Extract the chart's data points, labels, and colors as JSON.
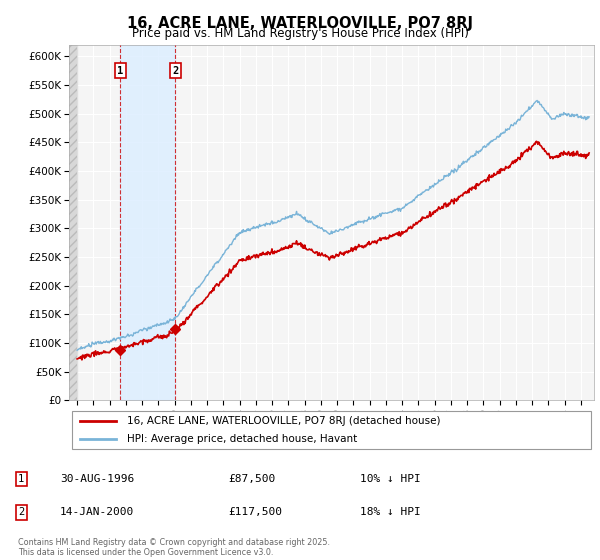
{
  "title": "16, ACRE LANE, WATERLOOVILLE, PO7 8RJ",
  "subtitle": "Price paid vs. HM Land Registry's House Price Index (HPI)",
  "ylim": [
    0,
    620000
  ],
  "yticks": [
    0,
    50000,
    100000,
    150000,
    200000,
    250000,
    300000,
    350000,
    400000,
    450000,
    500000,
    550000,
    600000
  ],
  "ytick_labels": [
    "£0",
    "£50K",
    "£100K",
    "£150K",
    "£200K",
    "£250K",
    "£300K",
    "£350K",
    "£400K",
    "£450K",
    "£500K",
    "£550K",
    "£600K"
  ],
  "hpi_color": "#7ab4d8",
  "price_color": "#cc0000",
  "sale1_date": 1996.66,
  "sale1_price": 87500,
  "sale2_date": 2000.04,
  "sale2_price": 117500,
  "legend1": "16, ACRE LANE, WATERLOOVILLE, PO7 8RJ (detached house)",
  "legend2": "HPI: Average price, detached house, Havant",
  "note1_date": "30-AUG-1996",
  "note1_price": "£87,500",
  "note1_hpi": "10% ↓ HPI",
  "note2_date": "14-JAN-2000",
  "note2_price": "£117,500",
  "note2_hpi": "18% ↓ HPI",
  "copyright": "Contains HM Land Registry data © Crown copyright and database right 2025.\nThis data is licensed under the Open Government Licence v3.0.",
  "plot_bg_color": "#f5f5f5",
  "grid_color": "#ffffff",
  "shade_between_color": "#ddeeff",
  "hatch_bg": "#e0e0e0"
}
